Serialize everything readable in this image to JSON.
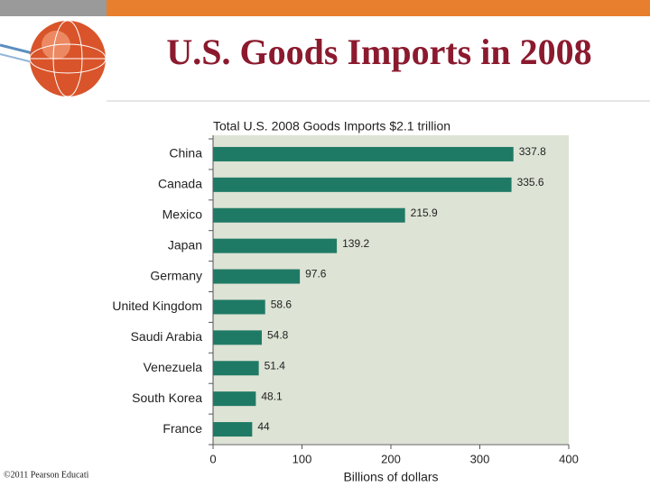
{
  "slide": {
    "title": "U.S. Goods Imports in 2008",
    "footer": "©2011 Pearson Educati"
  },
  "chart_data": {
    "type": "hbar",
    "title": "Total U.S. 2008 Goods Imports $2.1 trillion",
    "categories": [
      "China",
      "Canada",
      "Mexico",
      "Japan",
      "Germany",
      "United Kingdom",
      "Saudi Arabia",
      "Venezuela",
      "South Korea",
      "France"
    ],
    "values": [
      337.8,
      335.6,
      215.9,
      139.2,
      97.6,
      58.6,
      54.8,
      51.4,
      48.1,
      44
    ],
    "color": "#1f7a65",
    "xlim": [
      0,
      400
    ],
    "xticks": [
      0,
      100,
      200,
      300,
      400
    ],
    "xlabel": "Billions of dollars"
  }
}
